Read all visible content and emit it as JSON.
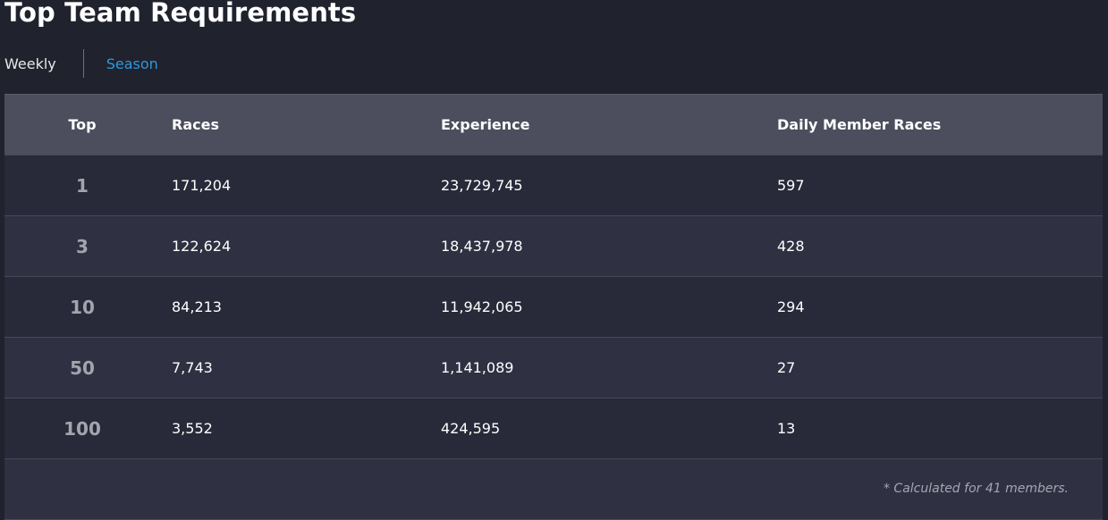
{
  "title": "Top Team Requirements",
  "tabs": [
    {
      "label": "Weekly",
      "active": false
    },
    {
      "label": "Season",
      "active": true
    }
  ],
  "table": {
    "headers": [
      "Top",
      "Races",
      "Experience",
      "Daily Member Races"
    ],
    "rows": [
      {
        "top": "1",
        "races": "171,204",
        "experience": "23,729,745",
        "daily": "597"
      },
      {
        "top": "3",
        "races": "122,624",
        "experience": "18,437,978",
        "daily": "428"
      },
      {
        "top": "10",
        "races": "84,213",
        "experience": "11,942,065",
        "daily": "294"
      },
      {
        "top": "50",
        "races": "7,743",
        "experience": "1,141,089",
        "daily": "27"
      },
      {
        "top": "100",
        "races": "3,552",
        "experience": "424,595",
        "daily": "13"
      }
    ],
    "footnote": "* Calculated for 41 members."
  },
  "colors": {
    "background": "#20222d",
    "header": "#4c4e5d",
    "row_alt": "#2f3142",
    "row_base": "#282a39",
    "accent": "#2e98e0"
  }
}
